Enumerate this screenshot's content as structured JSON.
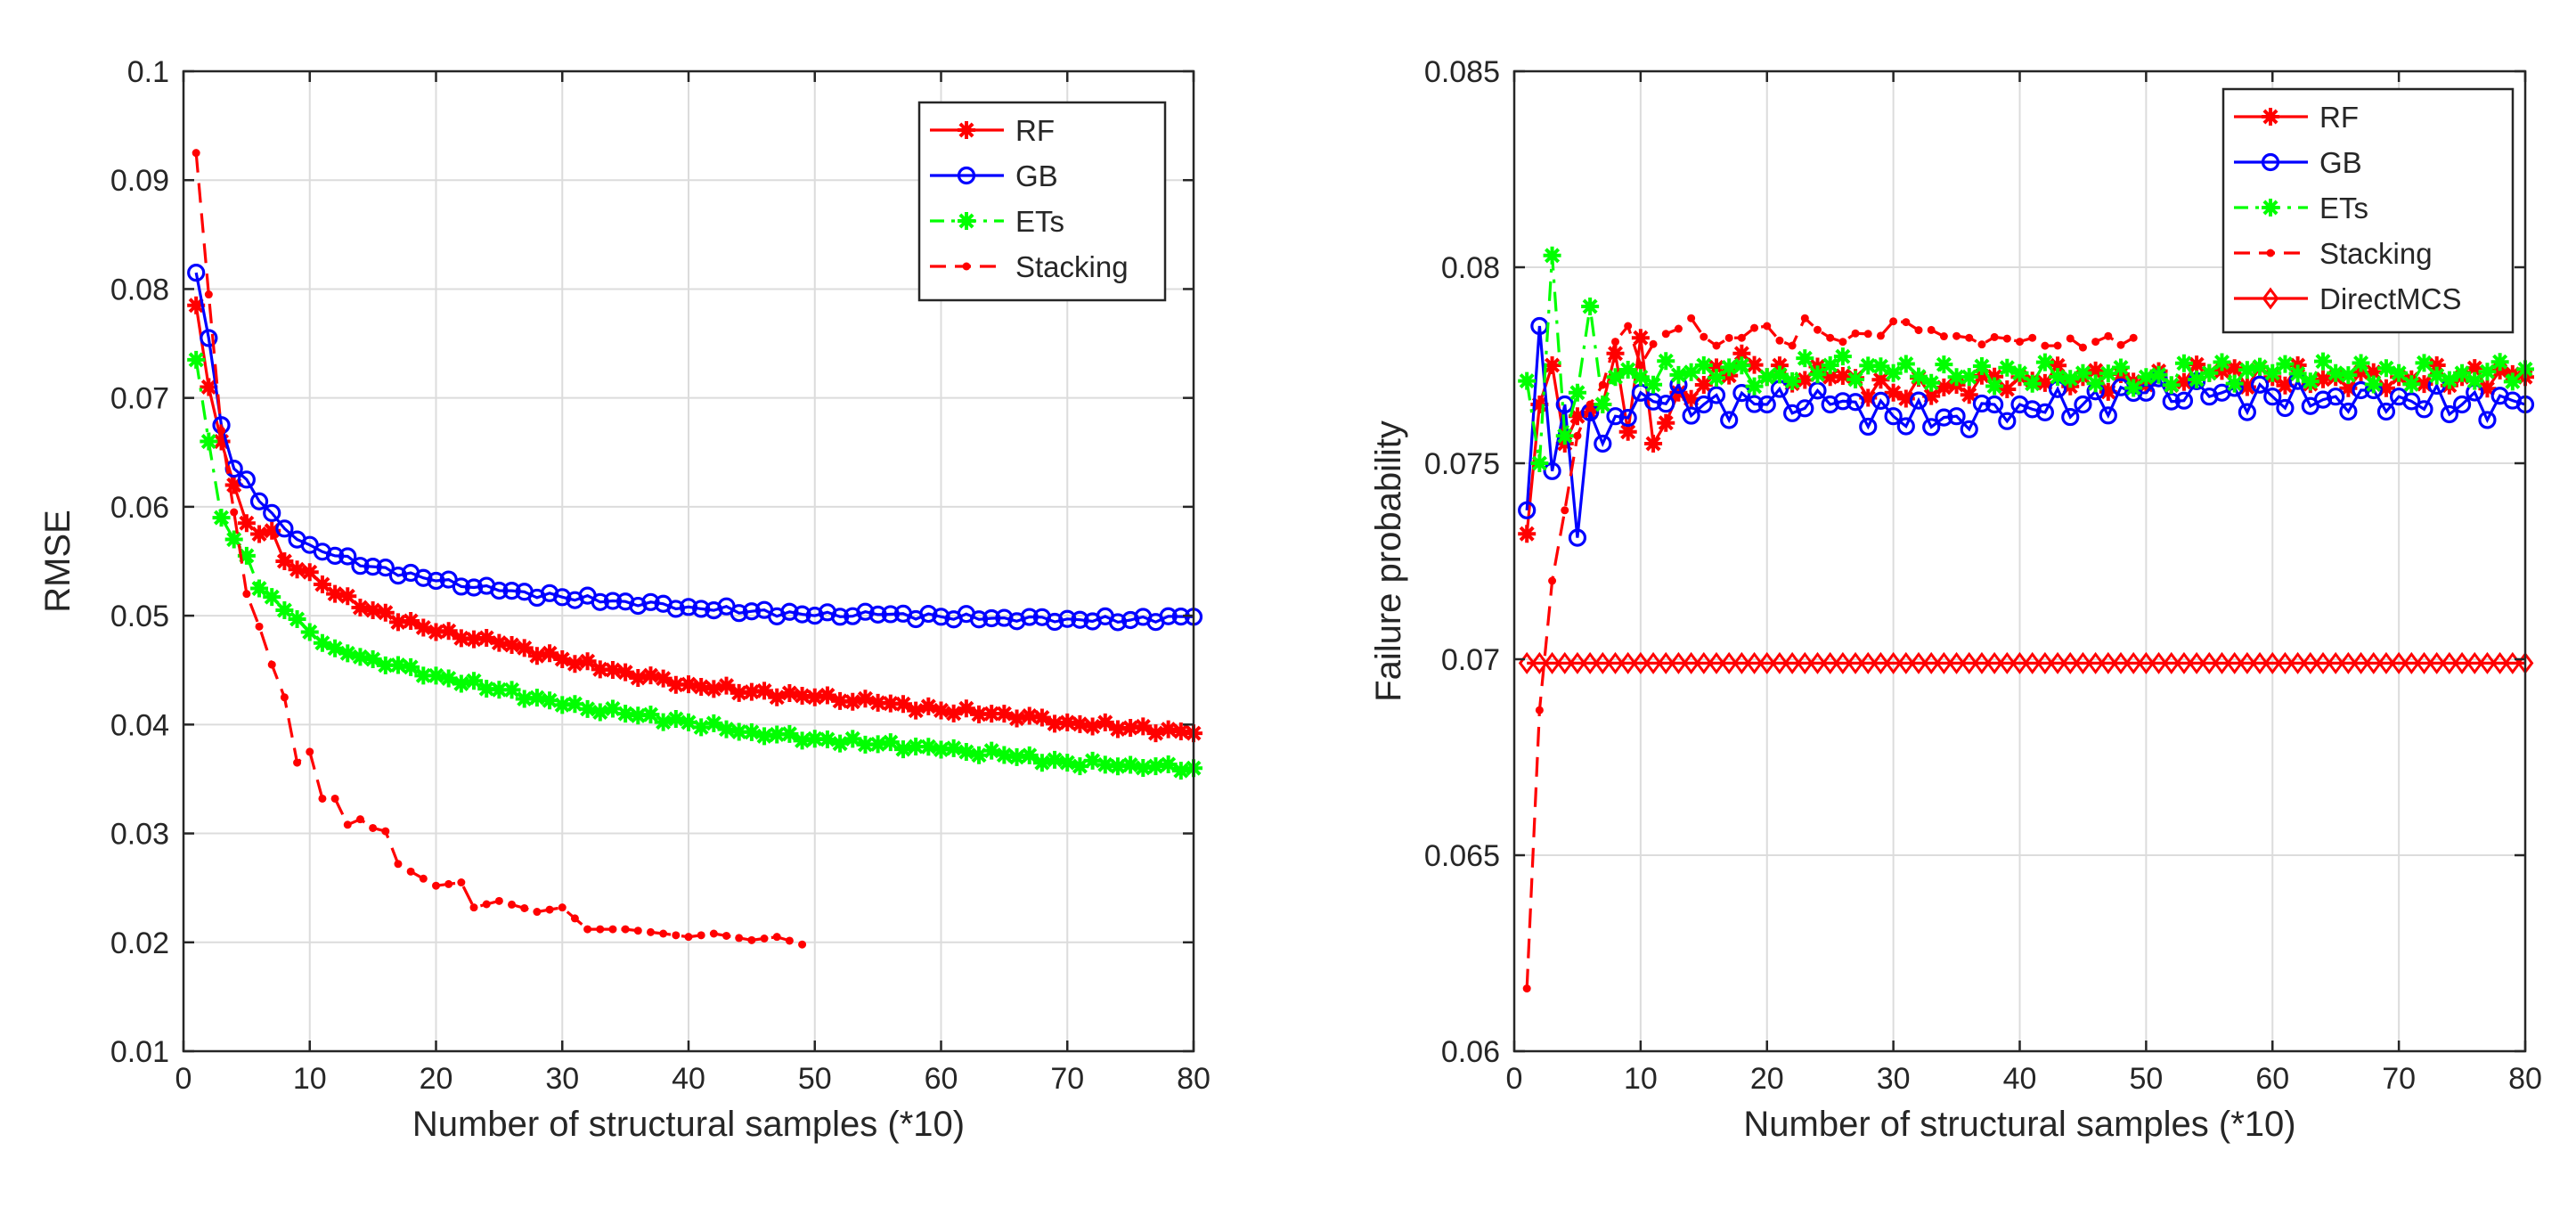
{
  "colors": {
    "RF": "#ff0000",
    "GB": "#0000ff",
    "ETs": "#00ff00",
    "Stacking": "#ff0000",
    "DirectMCS": "#ff0000",
    "grid": "#dcdcdc",
    "axis": "#262626"
  },
  "chart_data": [
    {
      "type": "line",
      "xlabel": "Number of structural samples (*10)",
      "ylabel": "RMSE",
      "xlim": [
        0,
        80
      ],
      "ylim": [
        0.01,
        0.1
      ],
      "xticks": [
        0,
        10,
        20,
        30,
        40,
        50,
        60,
        70,
        80
      ],
      "xtick_labels": [
        "0",
        "10",
        "20",
        "30",
        "40",
        "50",
        "60",
        "70",
        "80"
      ],
      "yticks": [
        0.01,
        0.02,
        0.03,
        0.04,
        0.05,
        0.06,
        0.07,
        0.08,
        0.09,
        0.1
      ],
      "ytick_labels": [
        "0.01",
        "0.02",
        "0.03",
        "0.04",
        "0.05",
        "0.06",
        "0.07",
        "0.08",
        "0.09",
        "0.1"
      ],
      "grid": true,
      "legend_position": "top-right",
      "series": [
        {
          "name": "RF",
          "style": "solid",
          "marker": "star",
          "color": "#ff0000",
          "x_start": 1,
          "x_end": 80,
          "anchors": [
            [
              1,
              0.0785
            ],
            [
              2,
              0.071
            ],
            [
              3,
              0.066
            ],
            [
              4,
              0.062
            ],
            [
              5,
              0.0585
            ],
            [
              6,
              0.0575
            ],
            [
              7,
              0.0578
            ],
            [
              8,
              0.055
            ],
            [
              10,
              0.054
            ],
            [
              12,
              0.052
            ],
            [
              15,
              0.0505
            ],
            [
              20,
              0.0485
            ],
            [
              25,
              0.0475
            ],
            [
              30,
              0.046
            ],
            [
              35,
              0.0448
            ],
            [
              40,
              0.0437
            ],
            [
              45,
              0.043
            ],
            [
              50,
              0.0425
            ],
            [
              55,
              0.042
            ],
            [
              60,
              0.0413
            ],
            [
              65,
              0.041
            ],
            [
              70,
              0.0402
            ],
            [
              75,
              0.0397
            ],
            [
              80,
              0.0392
            ]
          ],
          "jitter": 0.0003
        },
        {
          "name": "GB",
          "style": "solid",
          "marker": "circle",
          "color": "#0000ff",
          "x_start": 1,
          "x_end": 80,
          "anchors": [
            [
              1,
              0.0815
            ],
            [
              2,
              0.0755
            ],
            [
              3,
              0.0675
            ],
            [
              4,
              0.0635
            ],
            [
              5,
              0.0625
            ],
            [
              6,
              0.0605
            ],
            [
              8,
              0.058
            ],
            [
              10,
              0.0565
            ],
            [
              12,
              0.0555
            ],
            [
              15,
              0.0545
            ],
            [
              20,
              0.0532
            ],
            [
              25,
              0.0523
            ],
            [
              30,
              0.0517
            ],
            [
              35,
              0.0513
            ],
            [
              40,
              0.0508
            ],
            [
              45,
              0.0504
            ],
            [
              50,
              0.05
            ],
            [
              55,
              0.0501
            ],
            [
              60,
              0.0499
            ],
            [
              65,
              0.0498
            ],
            [
              70,
              0.0497
            ],
            [
              75,
              0.0496
            ],
            [
              80,
              0.0499
            ]
          ],
          "jitter": 0.0003
        },
        {
          "name": "ETs",
          "style": "dashdot",
          "marker": "star",
          "color": "#00ff00",
          "x_start": 1,
          "x_end": 80,
          "anchors": [
            [
              1,
              0.0735
            ],
            [
              2,
              0.066
            ],
            [
              3,
              0.059
            ],
            [
              4,
              0.057
            ],
            [
              5,
              0.0555
            ],
            [
              6,
              0.0525
            ],
            [
              8,
              0.0505
            ],
            [
              10,
              0.0485
            ],
            [
              12,
              0.047
            ],
            [
              15,
              0.046
            ],
            [
              20,
              0.0445
            ],
            [
              25,
              0.0432
            ],
            [
              30,
              0.0418
            ],
            [
              35,
              0.041
            ],
            [
              40,
              0.0402
            ],
            [
              45,
              0.0393
            ],
            [
              50,
              0.0387
            ],
            [
              55,
              0.0382
            ],
            [
              60,
              0.0377
            ],
            [
              65,
              0.0372
            ],
            [
              70,
              0.0365
            ],
            [
              75,
              0.0363
            ],
            [
              80,
              0.036
            ]
          ],
          "jitter": 0.0003
        },
        {
          "name": "Stacking",
          "style": "dashed",
          "marker": "dot",
          "color": "#ff0000",
          "x_start": 1,
          "x_end": 49,
          "anchors": [
            [
              1,
              0.0925
            ],
            [
              2,
              0.0795
            ],
            [
              3,
              0.067
            ],
            [
              4,
              0.0595
            ],
            [
              5,
              0.052
            ],
            [
              6,
              0.049
            ],
            [
              7,
              0.0455
            ],
            [
              8,
              0.0425
            ],
            [
              9,
              0.0365
            ],
            [
              10,
              0.0375
            ],
            [
              11,
              0.0332
            ],
            [
              12,
              0.0332
            ],
            [
              13,
              0.0308
            ],
            [
              14,
              0.0313
            ],
            [
              15,
              0.0305
            ],
            [
              16,
              0.0302
            ],
            [
              17,
              0.0272
            ],
            [
              18,
              0.0265
            ],
            [
              20,
              0.0252
            ],
            [
              22,
              0.0255
            ],
            [
              23,
              0.0232
            ],
            [
              25,
              0.0238
            ],
            [
              28,
              0.0228
            ],
            [
              30,
              0.0232
            ],
            [
              32,
              0.0212
            ],
            [
              35,
              0.0212
            ],
            [
              38,
              0.0208
            ],
            [
              40,
              0.0205
            ],
            [
              42,
              0.0208
            ],
            [
              45,
              0.0202
            ],
            [
              47,
              0.0205
            ],
            [
              49,
              0.0198
            ]
          ],
          "jitter": 0.0
        }
      ],
      "legend": [
        "RF",
        "GB",
        "ETs",
        "Stacking"
      ]
    },
    {
      "type": "line",
      "xlabel": "Number of structural samples (*10)",
      "ylabel": "Failure probability",
      "xlim": [
        0,
        80
      ],
      "ylim": [
        0.06,
        0.085
      ],
      "xticks": [
        0,
        10,
        20,
        30,
        40,
        50,
        60,
        70,
        80
      ],
      "xtick_labels": [
        "0",
        "10",
        "20",
        "30",
        "40",
        "50",
        "60",
        "70",
        "80"
      ],
      "yticks": [
        0.06,
        0.065,
        0.07,
        0.075,
        0.08,
        0.085
      ],
      "ytick_labels": [
        "0.06",
        "0.065",
        "0.07",
        "0.075",
        "0.08",
        "0.085"
      ],
      "grid": true,
      "legend_position": "top-right",
      "series": [
        {
          "name": "RF",
          "style": "solid",
          "marker": "star",
          "color": "#ff0000",
          "x_start": 1,
          "x_end": 80,
          "anchors": [
            [
              1,
              0.0732
            ],
            [
              2,
              0.0765
            ],
            [
              3,
              0.0775
            ],
            [
              4,
              0.0755
            ],
            [
              5,
              0.0762
            ],
            [
              6,
              0.0763
            ],
            [
              7,
              0.0765
            ],
            [
              8,
              0.0778
            ],
            [
              9,
              0.0758
            ],
            [
              10,
              0.0782
            ],
            [
              11,
              0.0755
            ],
            [
              13,
              0.0768
            ],
            [
              15,
              0.077
            ],
            [
              18,
              0.0778
            ],
            [
              20,
              0.0772
            ],
            [
              25,
              0.0772
            ],
            [
              30,
              0.0768
            ],
            [
              35,
              0.077
            ],
            [
              40,
              0.0772
            ],
            [
              45,
              0.0772
            ],
            [
              50,
              0.077
            ],
            [
              55,
              0.0773
            ],
            [
              60,
              0.0772
            ],
            [
              65,
              0.0772
            ],
            [
              70,
              0.0772
            ],
            [
              75,
              0.0772
            ],
            [
              80,
              0.0772
            ]
          ],
          "jitter": 0.0003
        },
        {
          "name": "GB",
          "style": "solid",
          "marker": "circle",
          "color": "#0000ff",
          "x_start": 1,
          "x_end": 80,
          "anchors": [
            [
              1,
              0.0738
            ],
            [
              2,
              0.0785
            ],
            [
              3,
              0.0748
            ],
            [
              4,
              0.0765
            ],
            [
              5,
              0.0731
            ],
            [
              6,
              0.0763
            ],
            [
              7,
              0.0755
            ],
            [
              8,
              0.0762
            ],
            [
              10,
              0.0768
            ],
            [
              15,
              0.0765
            ],
            [
              20,
              0.0765
            ],
            [
              25,
              0.0765
            ],
            [
              30,
              0.0762
            ],
            [
              35,
              0.0762
            ],
            [
              40,
              0.0765
            ],
            [
              45,
              0.0765
            ],
            [
              50,
              0.0768
            ],
            [
              55,
              0.0767
            ],
            [
              60,
              0.0767
            ],
            [
              65,
              0.0767
            ],
            [
              70,
              0.0767
            ],
            [
              75,
              0.0765
            ],
            [
              80,
              0.0765
            ]
          ],
          "jitter": 0.0004
        },
        {
          "name": "ETs",
          "style": "dashdot",
          "marker": "star",
          "color": "#00ff00",
          "x_start": 1,
          "x_end": 80,
          "anchors": [
            [
              1,
              0.0771
            ],
            [
              2,
              0.075
            ],
            [
              3,
              0.0803
            ],
            [
              4,
              0.0757
            ],
            [
              5,
              0.0768
            ],
            [
              6,
              0.079
            ],
            [
              7,
              0.0765
            ],
            [
              8,
              0.0772
            ],
            [
              10,
              0.0772
            ],
            [
              15,
              0.0775
            ],
            [
              20,
              0.0772
            ],
            [
              25,
              0.0775
            ],
            [
              30,
              0.0773
            ],
            [
              35,
              0.0772
            ],
            [
              40,
              0.0773
            ],
            [
              45,
              0.0773
            ],
            [
              50,
              0.0772
            ],
            [
              55,
              0.0773
            ],
            [
              60,
              0.0773
            ],
            [
              65,
              0.0773
            ],
            [
              70,
              0.0773
            ],
            [
              75,
              0.0773
            ],
            [
              80,
              0.0774
            ]
          ],
          "jitter": 0.0003
        },
        {
          "name": "Stacking",
          "style": "dashed",
          "marker": "dot",
          "color": "#ff0000",
          "x_start": 1,
          "x_end": 49,
          "anchors": [
            [
              1,
              0.0616
            ],
            [
              2,
              0.0687
            ],
            [
              3,
              0.072
            ],
            [
              4,
              0.0738
            ],
            [
              5,
              0.0757
            ],
            [
              6,
              0.0765
            ],
            [
              7,
              0.077
            ],
            [
              8,
              0.0781
            ],
            [
              9,
              0.0785
            ],
            [
              10,
              0.0775
            ],
            [
              12,
              0.0783
            ],
            [
              14,
              0.0787
            ],
            [
              16,
              0.078
            ],
            [
              18,
              0.0782
            ],
            [
              20,
              0.0785
            ],
            [
              22,
              0.078
            ],
            [
              23,
              0.0787
            ],
            [
              25,
              0.0782
            ],
            [
              28,
              0.0783
            ],
            [
              31,
              0.0786
            ],
            [
              33,
              0.0784
            ],
            [
              36,
              0.0782
            ],
            [
              40,
              0.0781
            ],
            [
              43,
              0.078
            ],
            [
              46,
              0.0781
            ],
            [
              49,
              0.0782
            ]
          ],
          "jitter": 0.00015
        },
        {
          "name": "DirectMCS",
          "style": "solid",
          "marker": "diamond",
          "color": "#ff0000",
          "x_start": 1,
          "x_end": 80,
          "anchors": [
            [
              1,
              0.0699
            ],
            [
              80,
              0.0699
            ]
          ],
          "jitter": 0.0
        }
      ],
      "legend": [
        "RF",
        "GB",
        "ETs",
        "Stacking",
        "DirectMCS"
      ]
    }
  ]
}
